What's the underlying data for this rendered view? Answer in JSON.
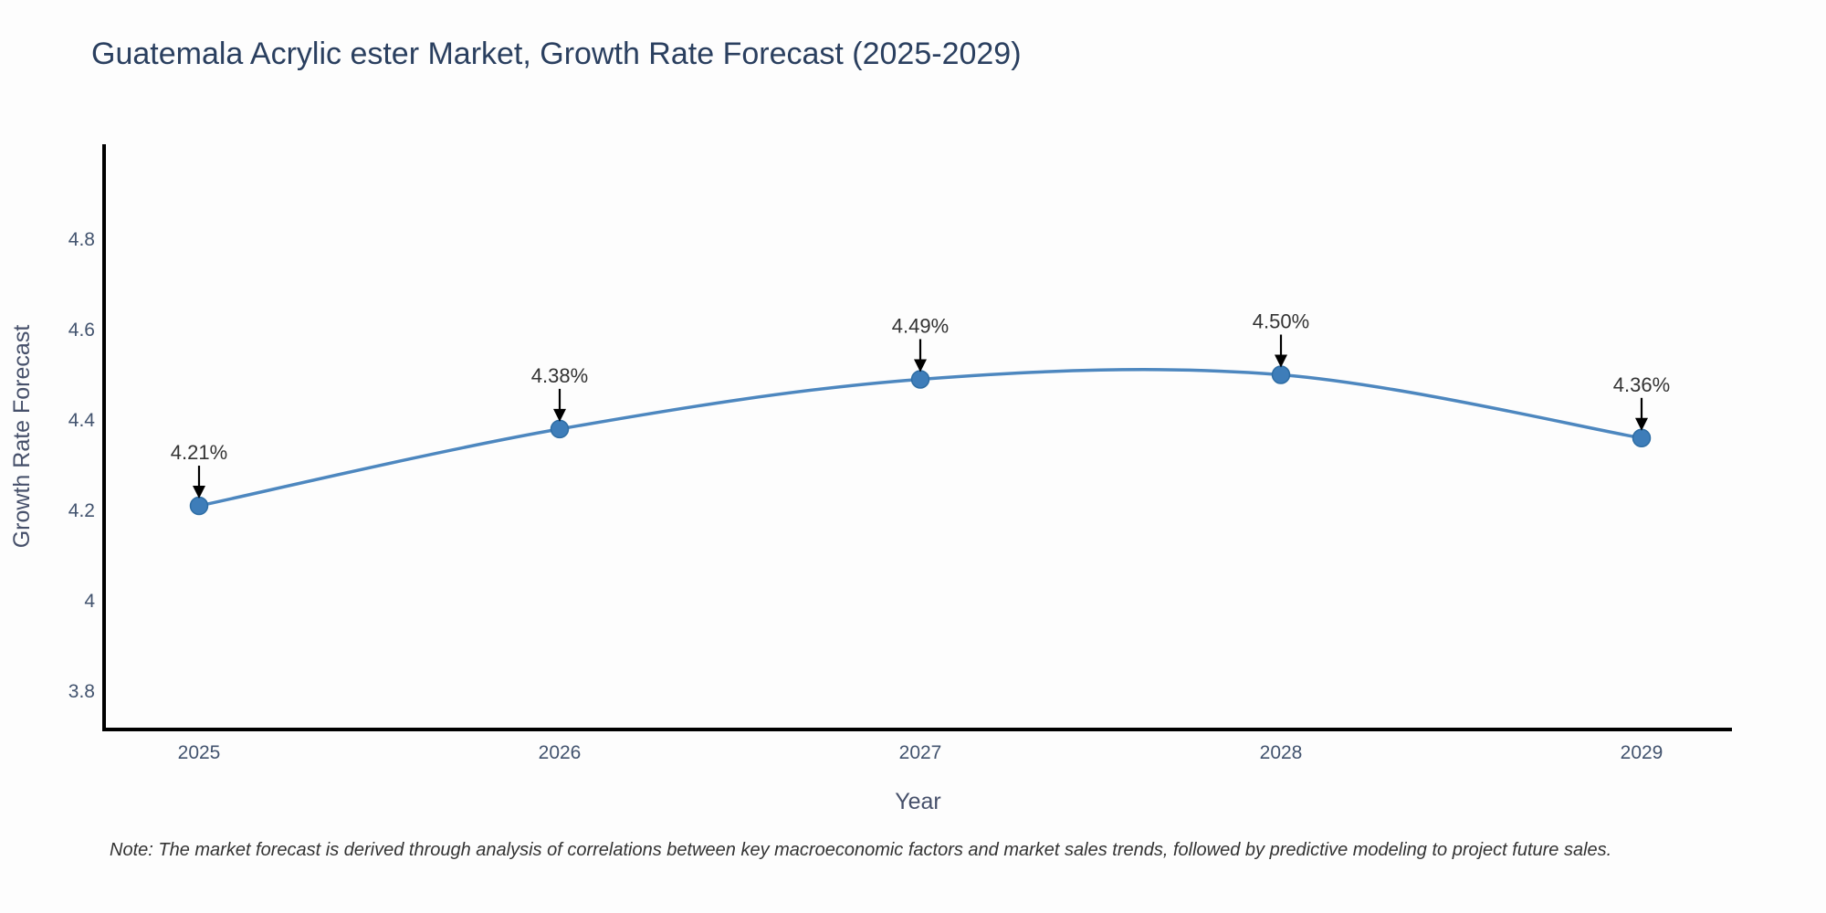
{
  "page": {
    "background": "#fdfdfd"
  },
  "chart": {
    "title": "Guatemala Acrylic ester Market, Growth Rate Forecast (2025-2029)",
    "note": "Note: The market forecast is derived through analysis of correlations between key macroeconomic factors and market sales trends, followed by predictive modeling to project future sales.",
    "colors": {
      "title": "#2a3f5f",
      "axis_line": "#000000",
      "tick_label": "#42536e",
      "axis_title": "#46506a",
      "line": "#4d87bf",
      "marker_fill": "#3e7db9",
      "marker_stroke": "#2e6da4",
      "annotation_text": "#333333",
      "annotation_arrow": "#000000",
      "note_text": "#333333"
    }
  },
  "chart_data": {
    "type": "line",
    "title": "Guatemala Acrylic ester Market, Growth Rate Forecast (2025-2029)",
    "xlabel": "Year",
    "ylabel": "Growth Rate Forecast",
    "x": [
      2025,
      2026,
      2027,
      2028,
      2029
    ],
    "series": [
      {
        "name": "Growth Rate Forecast",
        "values": [
          4.21,
          4.38,
          4.49,
          4.5,
          4.36
        ],
        "point_labels": [
          "4.21%",
          "4.38%",
          "4.49%",
          "4.50%",
          "4.36%"
        ]
      }
    ],
    "x_tick_labels": [
      "2025",
      "2026",
      "2027",
      "2028",
      "2029"
    ],
    "y_ticks": [
      3.8,
      4.0,
      4.2,
      4.4,
      4.6,
      4.8
    ],
    "y_tick_labels": [
      "3.8",
      "4",
      "4.2",
      "4.4",
      "4.6",
      "4.8"
    ],
    "ylim": [
      3.715,
      5.01
    ],
    "line_shape": "spline",
    "grid": false,
    "legend": "none",
    "annotations": "each data point labeled with percent value and a black arrow pointing down at the point",
    "note": "Note: The market forecast is derived through analysis of correlations between key macroeconomic factors and market sales trends, followed by predictive modeling to project future sales."
  }
}
